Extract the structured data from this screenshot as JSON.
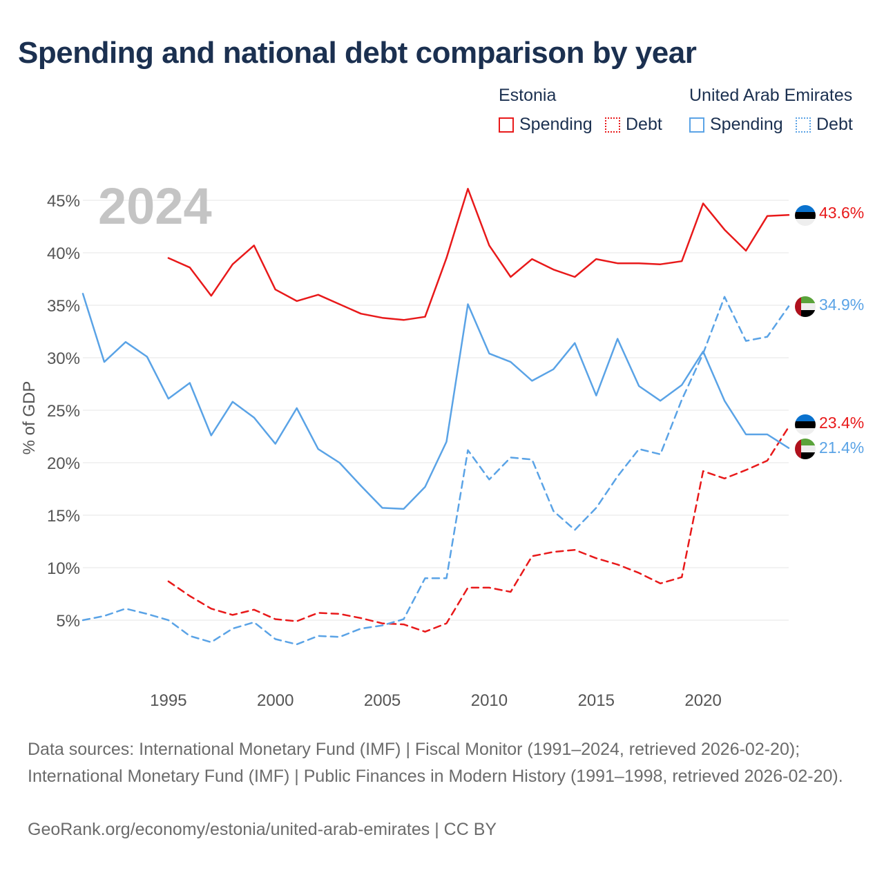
{
  "title": "Spending and national debt comparison by year",
  "legend": {
    "groups": [
      {
        "country": "Estonia",
        "items": [
          {
            "label": "Spending",
            "color": "#e8191a",
            "style": "solid"
          },
          {
            "label": "Debt",
            "color": "#e8191a",
            "style": "dashed"
          }
        ]
      },
      {
        "country": "United Arab Emirates",
        "items": [
          {
            "label": "Spending",
            "color": "#5aa3e6",
            "style": "solid"
          },
          {
            "label": "Debt",
            "color": "#5aa3e6",
            "style": "dashed"
          }
        ]
      }
    ]
  },
  "chart_data": {
    "type": "line",
    "year_label": "2024",
    "ylabel": "% of GDP",
    "xlabel": "",
    "xlim": [
      1991,
      2024
    ],
    "ylim": [
      -2.5,
      47.5
    ],
    "x_ticks": [
      1995,
      2000,
      2005,
      2010,
      2015,
      2020
    ],
    "y_ticks": [
      5,
      10,
      15,
      20,
      25,
      30,
      35,
      40,
      45
    ],
    "y_tick_labels": [
      "5%",
      "10%",
      "15%",
      "20%",
      "25%",
      "30%",
      "35%",
      "40%",
      "45%"
    ],
    "grid": true,
    "series": [
      {
        "name": "Estonia Spending",
        "country": "Estonia",
        "color": "#e8191a",
        "dashed": false,
        "x": [
          1995,
          1996,
          1997,
          1998,
          1999,
          2000,
          2001,
          2002,
          2003,
          2004,
          2005,
          2006,
          2007,
          2008,
          2009,
          2010,
          2011,
          2012,
          2013,
          2014,
          2015,
          2016,
          2017,
          2018,
          2019,
          2020,
          2021,
          2022,
          2023,
          2024
        ],
        "values": [
          39.5,
          38.6,
          35.9,
          38.9,
          40.7,
          36.5,
          35.4,
          36.0,
          35.1,
          34.2,
          33.8,
          33.6,
          33.9,
          39.5,
          46.1,
          40.7,
          37.7,
          39.4,
          38.4,
          37.7,
          39.4,
          39.0,
          39.0,
          38.9,
          39.2,
          44.7,
          42.2,
          40.2,
          43.5,
          43.6
        ],
        "end_label": "43.6%"
      },
      {
        "name": "Estonia Debt",
        "country": "Estonia",
        "color": "#e8191a",
        "dashed": true,
        "x": [
          1995,
          1996,
          1997,
          1998,
          1999,
          2000,
          2001,
          2002,
          2003,
          2004,
          2005,
          2006,
          2007,
          2008,
          2009,
          2010,
          2011,
          2012,
          2013,
          2014,
          2015,
          2016,
          2017,
          2018,
          2019,
          2020,
          2021,
          2022,
          2023,
          2024
        ],
        "values": [
          8.7,
          7.3,
          6.1,
          5.5,
          6.0,
          5.1,
          4.9,
          5.7,
          5.6,
          5.2,
          4.7,
          4.6,
          3.9,
          4.7,
          8.1,
          8.1,
          7.7,
          11.1,
          11.5,
          11.7,
          10.9,
          10.3,
          9.5,
          8.5,
          9.1,
          19.2,
          18.5,
          19.3,
          20.2,
          23.4
        ],
        "end_label": "23.4%"
      },
      {
        "name": "United Arab Emirates Spending",
        "country": "United Arab Emirates",
        "color": "#5aa3e6",
        "dashed": false,
        "x": [
          1991,
          1992,
          1993,
          1994,
          1995,
          1996,
          1997,
          1998,
          1999,
          2000,
          2001,
          2002,
          2003,
          2004,
          2005,
          2006,
          2007,
          2008,
          2009,
          2010,
          2011,
          2012,
          2013,
          2014,
          2015,
          2016,
          2017,
          2018,
          2019,
          2020,
          2021,
          2022,
          2023,
          2024
        ],
        "values": [
          36.1,
          29.6,
          31.5,
          30.1,
          26.1,
          27.6,
          22.6,
          25.8,
          24.3,
          21.8,
          25.2,
          21.3,
          20.0,
          17.8,
          15.7,
          15.6,
          17.7,
          22.0,
          35.1,
          30.4,
          29.6,
          27.8,
          28.9,
          31.4,
          26.4,
          31.8,
          27.3,
          25.9,
          27.4,
          30.6,
          25.9,
          22.7,
          22.7,
          21.4
        ],
        "end_label": "21.4%"
      },
      {
        "name": "United Arab Emirates Debt",
        "country": "United Arab Emirates",
        "color": "#5aa3e6",
        "dashed": true,
        "x": [
          1991,
          1992,
          1993,
          1994,
          1995,
          1996,
          1997,
          1998,
          1999,
          2000,
          2001,
          2002,
          2003,
          2004,
          2005,
          2006,
          2007,
          2008,
          2009,
          2010,
          2011,
          2012,
          2013,
          2014,
          2015,
          2016,
          2017,
          2018,
          2019,
          2020,
          2021,
          2022,
          2023,
          2024
        ],
        "values": [
          5.0,
          5.4,
          6.1,
          5.6,
          5.0,
          3.5,
          2.9,
          4.2,
          4.8,
          3.2,
          2.7,
          3.5,
          3.4,
          4.2,
          4.5,
          5.1,
          9.0,
          9.0,
          21.2,
          18.4,
          20.5,
          20.3,
          15.4,
          13.6,
          15.7,
          18.7,
          21.3,
          20.8,
          26.0,
          30.4,
          35.8,
          31.6,
          32.0,
          34.9
        ],
        "end_label": "34.9%"
      }
    ]
  },
  "sources": "Data sources: International Monetary Fund (IMF) | Fiscal Monitor (1991–2024, retrieved 2026-02-20); International Monetary Fund (IMF) | Public Finances in Modern History (1991–1998, retrieved 2026-02-20).",
  "credit": "GeoRank.org/economy/estonia/united-arab-emirates | CC BY"
}
